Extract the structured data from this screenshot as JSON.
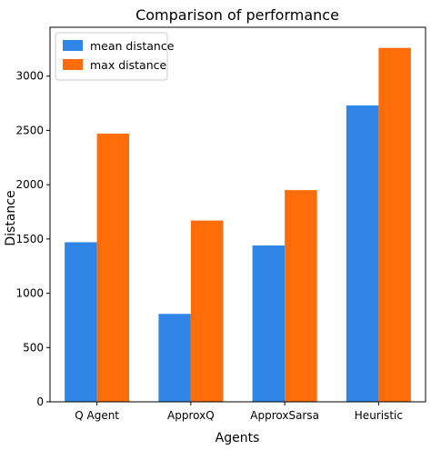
{
  "chart_data": {
    "type": "bar",
    "title": "Comparison of performance",
    "xlabel": "Agents",
    "ylabel": "Distance",
    "categories": [
      "Q Agent",
      "ApproxQ",
      "ApproxSarsa",
      "Heuristic"
    ],
    "series": [
      {
        "name": "mean distance",
        "values": [
          1470,
          810,
          1440,
          2730
        ],
        "color": "#2f86e6"
      },
      {
        "name": "max distance",
        "values": [
          2470,
          1670,
          1950,
          3260
        ],
        "color": "#ff6c0a"
      }
    ],
    "ylim": [
      0,
      3450
    ],
    "yticks": [
      0,
      500,
      1000,
      1500,
      2000,
      2500,
      3000
    ],
    "grid": false,
    "legend_position": "top-left"
  }
}
